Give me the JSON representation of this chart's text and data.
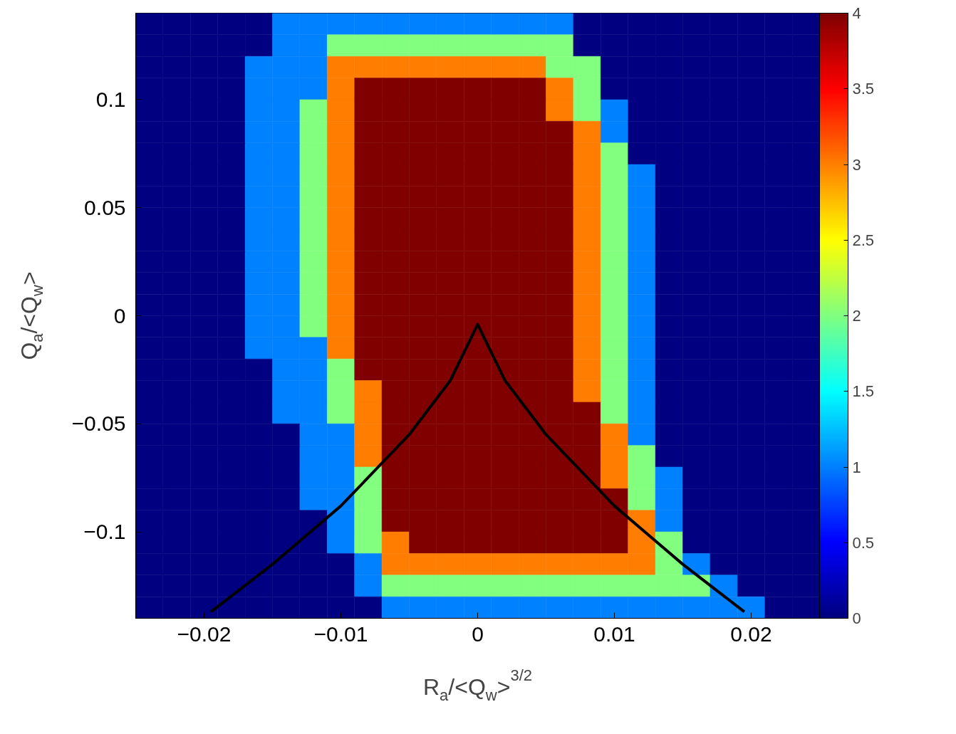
{
  "chart_data": {
    "type": "heatmap",
    "xlabel": "R$_{a}$/<Q$_{w}$>$^{3/2}$",
    "ylabel": "Q$_{a}$/<Q$_{w}$>",
    "xlim": [
      -0.025,
      0.025
    ],
    "ylim": [
      -0.14,
      0.14
    ],
    "xticks": [
      {
        "value": -0.02,
        "label": "−0.02"
      },
      {
        "value": -0.01,
        "label": "−0.01"
      },
      0,
      0.01,
      0.02
    ],
    "yticks": [
      {
        "value": -0.1,
        "label": "−0.1"
      },
      {
        "value": -0.05,
        "label": "−0.05"
      },
      0,
      0.05,
      0.1
    ],
    "clim": [
      0,
      4
    ],
    "cticks": [
      0,
      0.5,
      1,
      1.5,
      2,
      2.5,
      3,
      3.5,
      4
    ],
    "x": [
      -0.024,
      -0.022,
      -0.02,
      -0.018,
      -0.016,
      -0.014,
      -0.012,
      -0.01,
      -0.008,
      -0.006,
      -0.004,
      -0.002,
      0,
      0.002,
      0.004,
      0.006,
      0.008,
      0.01,
      0.012,
      0.014,
      0.016,
      0.018,
      0.02,
      0.022,
      0.024
    ],
    "y": [
      0.135,
      0.125,
      0.115,
      0.105,
      0.095,
      0.085,
      0.075,
      0.065,
      0.055,
      0.045,
      0.035,
      0.025,
      0.015,
      0.005,
      -0.005,
      -0.015,
      -0.025,
      -0.035,
      -0.045,
      -0.055,
      -0.065,
      -0.075,
      -0.085,
      -0.095,
      -0.105,
      -0.115,
      -0.125,
      -0.135
    ],
    "cells": [
      [
        0,
        0,
        0,
        0,
        0,
        1,
        1,
        1,
        1,
        1,
        1,
        1,
        1,
        1,
        1,
        1,
        0,
        0,
        0,
        0,
        0,
        0,
        0,
        0,
        0
      ],
      [
        0,
        0,
        0,
        0,
        0,
        1,
        1,
        2,
        2,
        2,
        2,
        2,
        2,
        2,
        2,
        2,
        0,
        0,
        0,
        0,
        0,
        0,
        0,
        0,
        0
      ],
      [
        0,
        0,
        0,
        0,
        1,
        1,
        1,
        3,
        3,
        3,
        3,
        3,
        3,
        3,
        3,
        2,
        2,
        0,
        0,
        0,
        0,
        0,
        0,
        0,
        0
      ],
      [
        0,
        0,
        0,
        0,
        1,
        1,
        1,
        3,
        4,
        4,
        4,
        4,
        4,
        4,
        4,
        3,
        2,
        0,
        0,
        0,
        0,
        0,
        0,
        0,
        0
      ],
      [
        0,
        0,
        0,
        0,
        1,
        1,
        2,
        3,
        4,
        4,
        4,
        4,
        4,
        4,
        4,
        3,
        2,
        1,
        0,
        0,
        0,
        0,
        0,
        0,
        0
      ],
      [
        0,
        0,
        0,
        0,
        1,
        1,
        2,
        3,
        4,
        4,
        4,
        4,
        4,
        4,
        4,
        4,
        3,
        1,
        0,
        0,
        0,
        0,
        0,
        0,
        0
      ],
      [
        0,
        0,
        0,
        0,
        1,
        1,
        2,
        3,
        4,
        4,
        4,
        4,
        4,
        4,
        4,
        4,
        3,
        2,
        0,
        0,
        0,
        0,
        0,
        0,
        0
      ],
      [
        0,
        0,
        0,
        0,
        1,
        1,
        2,
        3,
        4,
        4,
        4,
        4,
        4,
        4,
        4,
        4,
        3,
        2,
        1,
        0,
        0,
        0,
        0,
        0,
        0
      ],
      [
        0,
        0,
        0,
        0,
        1,
        1,
        2,
        3,
        4,
        4,
        4,
        4,
        4,
        4,
        4,
        4,
        3,
        2,
        1,
        0,
        0,
        0,
        0,
        0,
        0
      ],
      [
        0,
        0,
        0,
        0,
        1,
        1,
        2,
        3,
        4,
        4,
        4,
        4,
        4,
        4,
        4,
        4,
        3,
        2,
        1,
        0,
        0,
        0,
        0,
        0,
        0
      ],
      [
        0,
        0,
        0,
        0,
        1,
        1,
        2,
        3,
        4,
        4,
        4,
        4,
        4,
        4,
        4,
        4,
        3,
        2,
        1,
        0,
        0,
        0,
        0,
        0,
        0
      ],
      [
        0,
        0,
        0,
        0,
        1,
        1,
        2,
        3,
        4,
        4,
        4,
        4,
        4,
        4,
        4,
        4,
        3,
        2,
        1,
        0,
        0,
        0,
        0,
        0,
        0
      ],
      [
        0,
        0,
        0,
        0,
        1,
        1,
        2,
        3,
        4,
        4,
        4,
        4,
        4,
        4,
        4,
        4,
        3,
        2,
        1,
        0,
        0,
        0,
        0,
        0,
        0
      ],
      [
        0,
        0,
        0,
        0,
        1,
        1,
        2,
        3,
        4,
        4,
        4,
        4,
        4,
        4,
        4,
        4,
        3,
        2,
        1,
        0,
        0,
        0,
        0,
        0,
        0
      ],
      [
        0,
        0,
        0,
        0,
        1,
        1,
        2,
        3,
        4,
        4,
        4,
        4,
        4,
        4,
        4,
        4,
        3,
        2,
        1,
        0,
        0,
        0,
        0,
        0,
        0
      ],
      [
        0,
        0,
        0,
        0,
        1,
        1,
        1,
        3,
        4,
        4,
        4,
        4,
        4,
        4,
        4,
        4,
        3,
        2,
        1,
        0,
        0,
        0,
        0,
        0,
        0
      ],
      [
        0,
        0,
        0,
        0,
        0,
        1,
        1,
        2,
        4,
        4,
        4,
        4,
        4,
        4,
        4,
        4,
        3,
        2,
        1,
        0,
        0,
        0,
        0,
        0,
        0
      ],
      [
        0,
        0,
        0,
        0,
        0,
        1,
        1,
        2,
        3,
        4,
        4,
        4,
        4,
        4,
        4,
        4,
        3,
        2,
        1,
        0,
        0,
        0,
        0,
        0,
        0
      ],
      [
        0,
        0,
        0,
        0,
        0,
        1,
        1,
        2,
        3,
        4,
        4,
        4,
        4,
        4,
        4,
        4,
        4,
        2,
        1,
        0,
        0,
        0,
        0,
        0,
        0
      ],
      [
        0,
        0,
        0,
        0,
        0,
        0,
        1,
        1,
        3,
        4,
        4,
        4,
        4,
        4,
        4,
        4,
        4,
        3,
        1,
        0,
        0,
        0,
        0,
        0,
        0
      ],
      [
        0,
        0,
        0,
        0,
        0,
        0,
        1,
        1,
        3,
        4,
        4,
        4,
        4,
        4,
        4,
        4,
        4,
        3,
        2,
        0,
        0,
        0,
        0,
        0,
        0
      ],
      [
        0,
        0,
        0,
        0,
        0,
        0,
        1,
        1,
        2,
        4,
        4,
        4,
        4,
        4,
        4,
        4,
        4,
        3,
        2,
        1,
        0,
        0,
        0,
        0,
        0
      ],
      [
        0,
        0,
        0,
        0,
        0,
        0,
        1,
        1,
        2,
        4,
        4,
        4,
        4,
        4,
        4,
        4,
        4,
        4,
        2,
        1,
        0,
        0,
        0,
        0,
        0
      ],
      [
        0,
        0,
        0,
        0,
        0,
        0,
        0,
        1,
        2,
        4,
        4,
        4,
        4,
        4,
        4,
        4,
        4,
        4,
        3,
        1,
        0,
        0,
        0,
        0,
        0
      ],
      [
        0,
        0,
        0,
        0,
        0,
        0,
        0,
        1,
        2,
        3,
        4,
        4,
        4,
        4,
        4,
        4,
        4,
        4,
        3,
        2,
        0,
        0,
        0,
        0,
        0
      ],
      [
        0,
        0,
        0,
        0,
        0,
        0,
        0,
        0,
        1,
        3,
        3,
        3,
        3,
        3,
        3,
        3,
        3,
        3,
        3,
        2,
        1,
        0,
        0,
        0,
        0
      ],
      [
        0,
        0,
        0,
        0,
        0,
        0,
        0,
        0,
        1,
        2,
        2,
        2,
        2,
        2,
        2,
        2,
        2,
        2,
        2,
        2,
        2,
        1,
        0,
        0,
        0
      ],
      [
        0,
        0,
        0,
        0,
        0,
        0,
        0,
        0,
        0,
        1,
        1,
        1,
        1,
        1,
        1,
        1,
        1,
        1,
        1,
        1,
        1,
        1,
        1,
        0,
        0
      ]
    ],
    "series": [
      {
        "type": "line",
        "color": "#000000",
        "x": [
          -0.0195,
          -0.015,
          -0.01,
          -0.005,
          -0.002,
          0,
          0.002,
          0.005,
          0.01,
          0.015,
          0.0195
        ],
        "values": [
          -0.137,
          -0.115,
          -0.088,
          -0.055,
          -0.03,
          -0.004,
          -0.03,
          -0.055,
          -0.088,
          -0.115,
          -0.137
        ]
      }
    ]
  }
}
